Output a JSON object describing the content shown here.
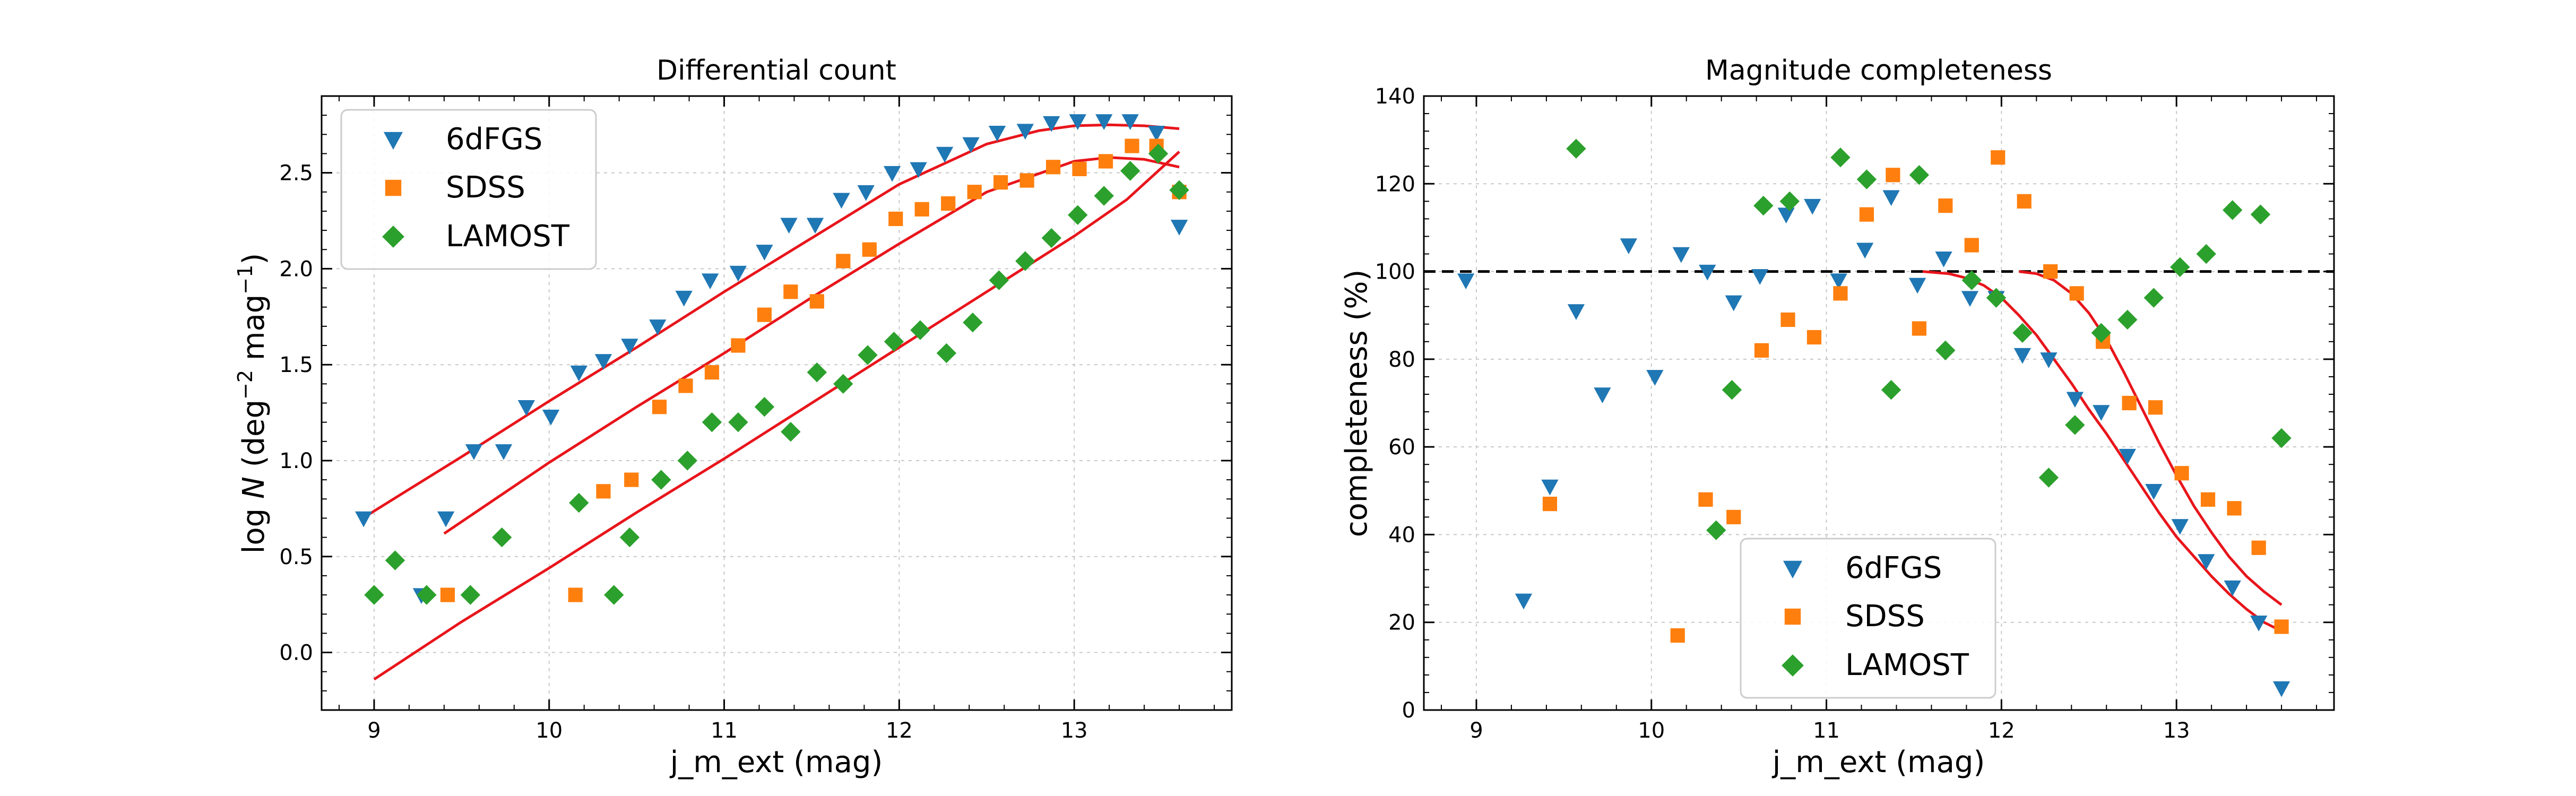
{
  "colors": {
    "6dFGS": "#1f77b4",
    "SDSS": "#ff7f0e",
    "LAMOST": "#2ca02c",
    "fit": "#e8151b",
    "reference": "#000000",
    "grid": "#c8c8c8"
  },
  "chart_data": [
    {
      "type": "scatter",
      "title": "Differential count",
      "xlabel": "j_m_ext (mag)",
      "ylabel_parts": {
        "a": "log ",
        "b": "N",
        "c": " (deg",
        "d": "−2",
        "e": " mag",
        "f": "−1",
        "g": ")"
      },
      "xlim": [
        8.7,
        13.9
      ],
      "ylim": [
        -0.3,
        2.9
      ],
      "xticks": [
        "9",
        "10",
        "11",
        "12",
        "13"
      ],
      "xtick_values": [
        9,
        10,
        11,
        12,
        13
      ],
      "yticks": [
        "0.0",
        "0.5",
        "1.0",
        "1.5",
        "2.0",
        "2.5"
      ],
      "ytick_values": [
        0.0,
        0.5,
        1.0,
        1.5,
        2.0,
        2.5
      ],
      "grid": true,
      "legend_position": "upper-left",
      "series": [
        {
          "name": "6dFGS",
          "marker": "triangle-down",
          "color": "#1f77b4",
          "x": [
            8.94,
            9.27,
            9.41,
            9.57,
            9.74,
            9.87,
            10.01,
            10.17,
            10.31,
            10.46,
            10.62,
            10.77,
            10.92,
            11.08,
            11.23,
            11.37,
            11.52,
            11.67,
            11.81,
            11.96,
            12.11,
            12.26,
            12.41,
            12.56,
            12.72,
            12.87,
            13.02,
            13.17,
            13.32,
            13.47,
            13.6
          ],
          "y": [
            0.7,
            0.3,
            0.7,
            1.05,
            1.05,
            1.28,
            1.23,
            1.46,
            1.52,
            1.6,
            1.7,
            1.85,
            1.94,
            1.98,
            2.09,
            2.23,
            2.23,
            2.36,
            2.4,
            2.5,
            2.52,
            2.6,
            2.65,
            2.71,
            2.72,
            2.76,
            2.77,
            2.77,
            2.77,
            2.71,
            2.22
          ]
        },
        {
          "name": "SDSS",
          "marker": "square",
          "color": "#ff7f0e",
          "x": [
            9.42,
            10.15,
            10.31,
            10.47,
            10.63,
            10.78,
            10.93,
            11.08,
            11.23,
            11.38,
            11.53,
            11.68,
            11.83,
            11.98,
            12.13,
            12.28,
            12.43,
            12.58,
            12.73,
            12.88,
            13.03,
            13.18,
            13.33,
            13.47,
            13.6
          ],
          "y": [
            0.3,
            0.3,
            0.84,
            0.9,
            1.28,
            1.39,
            1.46,
            1.6,
            1.76,
            1.88,
            1.83,
            2.04,
            2.1,
            2.26,
            2.31,
            2.34,
            2.4,
            2.45,
            2.46,
            2.53,
            2.52,
            2.56,
            2.64,
            2.64,
            2.4
          ]
        },
        {
          "name": "LAMOST",
          "marker": "diamond",
          "color": "#2ca02c",
          "x": [
            9.0,
            9.12,
            9.3,
            9.55,
            9.73,
            10.17,
            10.37,
            10.46,
            10.64,
            10.79,
            10.93,
            11.08,
            11.23,
            11.38,
            11.53,
            11.68,
            11.82,
            11.97,
            12.12,
            12.27,
            12.42,
            12.57,
            12.72,
            12.87,
            13.02,
            13.17,
            13.32,
            13.48,
            13.6
          ],
          "y": [
            0.3,
            0.48,
            0.3,
            0.3,
            0.6,
            0.78,
            0.3,
            0.6,
            0.9,
            1.0,
            1.2,
            1.2,
            1.28,
            1.15,
            1.46,
            1.4,
            1.55,
            1.62,
            1.68,
            1.56,
            1.72,
            1.94,
            2.04,
            2.16,
            2.28,
            2.38,
            2.51,
            2.6,
            2.41
          ]
        }
      ],
      "fits": [
        {
          "x": [
            8.97,
            9.5,
            10.0,
            10.5,
            11.0,
            11.5,
            12.0,
            12.5,
            12.8,
            13.0,
            13.2,
            13.4,
            13.6
          ],
          "y": [
            0.72,
            1.02,
            1.31,
            1.59,
            1.88,
            2.16,
            2.44,
            2.65,
            2.72,
            2.745,
            2.75,
            2.745,
            2.73
          ]
        },
        {
          "x": [
            9.4,
            10.0,
            10.5,
            11.0,
            11.5,
            12.0,
            12.5,
            13.0,
            13.2,
            13.4,
            13.6
          ],
          "y": [
            0.62,
            0.99,
            1.28,
            1.56,
            1.85,
            2.13,
            2.4,
            2.56,
            2.58,
            2.57,
            2.53
          ]
        },
        {
          "x": [
            9.0,
            9.5,
            10.0,
            10.5,
            11.0,
            11.5,
            12.0,
            12.5,
            13.0,
            13.3,
            13.6
          ],
          "y": [
            -0.14,
            0.16,
            0.44,
            0.73,
            1.01,
            1.3,
            1.59,
            1.88,
            2.17,
            2.36,
            2.61
          ]
        }
      ]
    },
    {
      "type": "scatter",
      "title": "Magnitude completeness",
      "xlabel": "j_m_ext (mag)",
      "ylabel": "completeness (%)",
      "xlim": [
        8.7,
        13.9
      ],
      "ylim": [
        0,
        140
      ],
      "xticks": [
        "9",
        "10",
        "11",
        "12",
        "13"
      ],
      "xtick_values": [
        9,
        10,
        11,
        12,
        13
      ],
      "yticks": [
        "0",
        "20",
        "40",
        "60",
        "80",
        "100",
        "120",
        "140"
      ],
      "ytick_values": [
        0,
        20,
        40,
        60,
        80,
        100,
        120,
        140
      ],
      "grid": true,
      "legend_position": "lower-center",
      "reference_y": 100,
      "series": [
        {
          "name": "6dFGS",
          "marker": "triangle-down",
          "color": "#1f77b4",
          "x": [
            8.94,
            9.27,
            9.42,
            9.57,
            9.72,
            9.87,
            10.02,
            10.17,
            10.32,
            10.47,
            10.62,
            10.77,
            10.92,
            11.07,
            11.22,
            11.37,
            11.52,
            11.67,
            11.82,
            11.97,
            12.12,
            12.27,
            12.42,
            12.57,
            12.72,
            12.87,
            13.02,
            13.17,
            13.32,
            13.47,
            13.6
          ],
          "y": [
            98,
            25,
            51,
            91,
            72,
            106,
            76,
            104,
            100,
            93,
            99,
            113,
            115,
            98,
            105,
            117,
            97,
            103,
            94,
            94,
            81,
            80,
            71,
            68,
            58,
            50,
            42,
            34,
            28,
            20,
            5
          ]
        },
        {
          "name": "SDSS",
          "marker": "square",
          "color": "#ff7f0e",
          "x": [
            9.42,
            10.15,
            10.31,
            10.47,
            10.63,
            10.78,
            10.93,
            11.08,
            11.23,
            11.38,
            11.53,
            11.68,
            11.83,
            11.98,
            12.13,
            12.28,
            12.43,
            12.58,
            12.73,
            12.88,
            13.03,
            13.18,
            13.33,
            13.47,
            13.6
          ],
          "y": [
            47,
            17,
            48,
            44,
            82,
            89,
            85,
            95,
            113,
            122,
            87,
            115,
            106,
            126,
            116,
            100,
            95,
            84,
            70,
            69,
            54,
            48,
            46,
            37,
            19
          ]
        },
        {
          "name": "LAMOST",
          "marker": "diamond",
          "color": "#2ca02c",
          "x": [
            9.57,
            10.37,
            10.46,
            10.64,
            10.79,
            11.08,
            11.23,
            11.37,
            11.53,
            11.68,
            11.83,
            11.97,
            12.12,
            12.27,
            12.42,
            12.57,
            12.72,
            12.87,
            13.02,
            13.17,
            13.32,
            13.48,
            13.6
          ],
          "y": [
            128,
            41,
            73,
            115,
            116,
            126,
            121,
            73,
            122,
            82,
            98,
            94,
            86,
            53,
            65,
            86,
            89,
            94,
            101,
            104,
            114,
            113,
            62
          ]
        }
      ],
      "fits": [
        {
          "x": [
            11.55,
            11.7,
            11.8,
            11.9,
            12.0,
            12.1,
            12.2,
            12.3,
            12.4,
            12.5,
            12.6,
            12.7,
            12.8,
            12.9,
            13.0,
            13.1,
            13.2,
            13.3,
            13.4,
            13.5,
            13.6
          ],
          "y": [
            100,
            99.5,
            98.5,
            96.8,
            94,
            90,
            85.5,
            80,
            74.5,
            68.5,
            63,
            57,
            51,
            45,
            39.5,
            35,
            30.5,
            26.5,
            23,
            20,
            18
          ]
        },
        {
          "x": [
            12.1,
            12.2,
            12.3,
            12.4,
            12.5,
            12.6,
            12.7,
            12.8,
            12.9,
            13.0,
            13.1,
            13.2,
            13.3,
            13.4,
            13.5,
            13.6
          ],
          "y": [
            100,
            99.5,
            98,
            95,
            90.5,
            84.5,
            77,
            69,
            61,
            53.5,
            46.5,
            40.5,
            35,
            30.5,
            27,
            24
          ]
        }
      ]
    }
  ]
}
